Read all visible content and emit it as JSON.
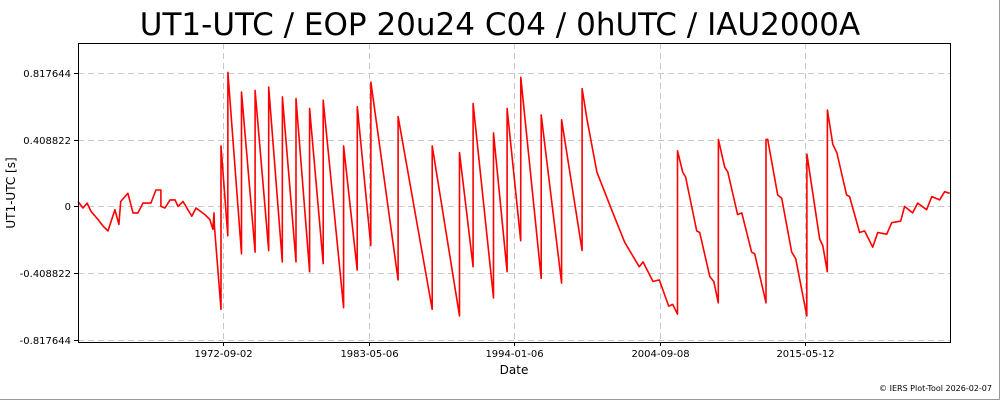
{
  "chart_data": {
    "type": "line",
    "title": "UT1-UTC / EOP 20u24 C04 / 0hUTC / IAU2000A",
    "xlabel": "Date",
    "ylabel": "UT1-UTC [s]",
    "xlim": [
      "1962-01-01",
      "2026-01-01"
    ],
    "ylim": [
      -0.83,
      1.0
    ],
    "x_ticks": [
      "1972-09-02",
      "1983-05-06",
      "1994-01-06",
      "2004-09-08",
      "2015-05-12"
    ],
    "y_ticks": [
      0.817644,
      0.408822,
      0,
      -0.408822,
      -0.817644
    ],
    "y_tick_labels": [
      "0.817644",
      "0.408822",
      "0",
      "-0.408822",
      "-0.817644"
    ],
    "grid": true,
    "series_color": "#ff0000",
    "points": [
      [
        "1962-01-01",
        0.03
      ],
      [
        "1962-05-15",
        -0.01
      ],
      [
        "1962-09-01",
        0.02
      ],
      [
        "1962-12-15",
        -0.03
      ],
      [
        "1963-06-20",
        -0.08
      ],
      [
        "1963-11-01",
        -0.12
      ],
      [
        "1964-03-15",
        -0.15
      ],
      [
        "1964-09-15",
        -0.02
      ],
      [
        "1965-01-01",
        -0.11
      ],
      [
        "1965-02-20",
        0.03
      ],
      [
        "1965-09-01",
        0.08
      ],
      [
        "1966-01-15",
        -0.04
      ],
      [
        "1966-05-25",
        -0.04
      ],
      [
        "1966-10-10",
        0.02
      ],
      [
        "1967-05-10",
        0.02
      ],
      [
        "1967-09-20",
        0.1
      ],
      [
        "1968-02-01",
        0.1
      ],
      [
        "1968-02-02",
        0.0
      ],
      [
        "1968-05-20",
        -0.01
      ],
      [
        "1968-10-01",
        0.04
      ],
      [
        "1969-02-15",
        0.04
      ],
      [
        "1969-05-05",
        0.0
      ],
      [
        "1969-09-15",
        0.03
      ],
      [
        "1970-05-10",
        -0.06
      ],
      [
        "1970-08-30",
        -0.01
      ],
      [
        "1971-04-25",
        -0.05
      ],
      [
        "1971-09-05",
        -0.08
      ],
      [
        "1971-11-25",
        -0.14
      ],
      [
        "1971-12-25",
        -0.04
      ],
      [
        "1972-01-05",
        -0.12
      ],
      [
        "1972-06-30",
        -0.63
      ],
      [
        "1972-07-01",
        0.37
      ],
      [
        "1972-12-31",
        -0.18
      ],
      [
        "1973-01-01",
        0.82
      ],
      [
        "1973-12-31",
        -0.29
      ],
      [
        "1974-01-01",
        0.7
      ],
      [
        "1974-12-31",
        -0.28
      ],
      [
        "1975-01-01",
        0.71
      ],
      [
        "1975-12-31",
        -0.27
      ],
      [
        "1976-01-01",
        0.73
      ],
      [
        "1976-12-31",
        -0.34
      ],
      [
        "1977-01-01",
        0.67
      ],
      [
        "1977-12-31",
        -0.34
      ],
      [
        "1978-01-01",
        0.66
      ],
      [
        "1978-12-31",
        -0.4
      ],
      [
        "1979-01-01",
        0.6
      ],
      [
        "1979-12-31",
        -0.35
      ],
      [
        "1980-01-01",
        0.65
      ],
      [
        "1981-06-30",
        -0.62
      ],
      [
        "1981-07-01",
        0.37
      ],
      [
        "1982-06-30",
        -0.39
      ],
      [
        "1982-07-01",
        0.61
      ],
      [
        "1983-06-30",
        -0.24
      ],
      [
        "1983-07-01",
        0.76
      ],
      [
        "1985-06-30",
        -0.45
      ],
      [
        "1985-07-01",
        0.55
      ],
      [
        "1987-12-31",
        -0.63
      ],
      [
        "1988-01-01",
        0.37
      ],
      [
        "1989-12-31",
        -0.67
      ],
      [
        "1990-01-01",
        0.33
      ],
      [
        "1990-12-31",
        -0.37
      ],
      [
        "1991-01-01",
        0.63
      ],
      [
        "1992-06-30",
        -0.56
      ],
      [
        "1992-07-01",
        0.45
      ],
      [
        "1993-06-30",
        -0.4
      ],
      [
        "1993-07-01",
        0.6
      ],
      [
        "1994-06-30",
        -0.21
      ],
      [
        "1994-07-01",
        0.79
      ],
      [
        "1995-12-31",
        -0.44
      ],
      [
        "1996-01-01",
        0.56
      ],
      [
        "1997-06-30",
        -0.47
      ],
      [
        "1997-07-01",
        0.53
      ],
      [
        "1998-12-31",
        -0.27
      ],
      [
        "1999-01-01",
        0.72
      ],
      [
        "1999-05-15",
        0.53
      ],
      [
        "2000-02-01",
        0.21
      ],
      [
        "2001-03-01",
        -0.02
      ],
      [
        "2002-02-15",
        -0.22
      ],
      [
        "2003-03-15",
        -0.37
      ],
      [
        "2003-06-20",
        -0.34
      ],
      [
        "2004-03-15",
        -0.46
      ],
      [
        "2004-09-01",
        -0.45
      ],
      [
        "2005-05-10",
        -0.61
      ],
      [
        "2005-08-25",
        -0.6
      ],
      [
        "2005-12-31",
        -0.66
      ],
      [
        "2006-01-01",
        0.34
      ],
      [
        "2006-05-20",
        0.21
      ],
      [
        "2006-08-05",
        0.18
      ],
      [
        "2007-05-30",
        -0.15
      ],
      [
        "2007-08-20",
        -0.16
      ],
      [
        "2008-05-15",
        -0.43
      ],
      [
        "2008-08-30",
        -0.46
      ],
      [
        "2008-12-31",
        -0.59
      ],
      [
        "2009-01-01",
        0.41
      ],
      [
        "2009-06-20",
        0.24
      ],
      [
        "2009-09-10",
        0.21
      ],
      [
        "2010-06-01",
        -0.05
      ],
      [
        "2010-09-20",
        -0.04
      ],
      [
        "2011-06-10",
        -0.28
      ],
      [
        "2011-09-01",
        -0.29
      ],
      [
        "2012-06-30",
        -0.59
      ],
      [
        "2012-07-01",
        0.41
      ],
      [
        "2012-08-15",
        0.41
      ],
      [
        "2013-05-10",
        0.07
      ],
      [
        "2013-08-25",
        0.05
      ],
      [
        "2014-05-20",
        -0.28
      ],
      [
        "2014-09-05",
        -0.32
      ],
      [
        "2015-06-30",
        -0.67
      ],
      [
        "2015-07-01",
        0.32
      ],
      [
        "2016-06-10",
        -0.2
      ],
      [
        "2016-08-30",
        -0.24
      ],
      [
        "2016-12-31",
        -0.4
      ],
      [
        "2017-01-01",
        0.59
      ],
      [
        "2017-05-25",
        0.38
      ],
      [
        "2017-09-10",
        0.33
      ],
      [
        "2018-06-01",
        0.07
      ],
      [
        "2018-08-20",
        0.06
      ],
      [
        "2019-05-15",
        -0.16
      ],
      [
        "2019-09-25",
        -0.15
      ],
      [
        "2020-05-01",
        -0.25
      ],
      [
        "2020-09-10",
        -0.16
      ],
      [
        "2021-05-10",
        -0.17
      ],
      [
        "2021-09-20",
        -0.1
      ],
      [
        "2022-05-20",
        -0.09
      ],
      [
        "2022-09-01",
        0.0
      ],
      [
        "2023-04-05",
        -0.04
      ],
      [
        "2023-08-20",
        0.02
      ],
      [
        "2024-04-15",
        -0.02
      ],
      [
        "2024-08-30",
        0.06
      ],
      [
        "2025-03-30",
        0.04
      ],
      [
        "2025-08-10",
        0.09
      ],
      [
        "2025-12-25",
        0.08
      ]
    ]
  },
  "credit": "© IERS Plot-Tool 2026-02-07"
}
